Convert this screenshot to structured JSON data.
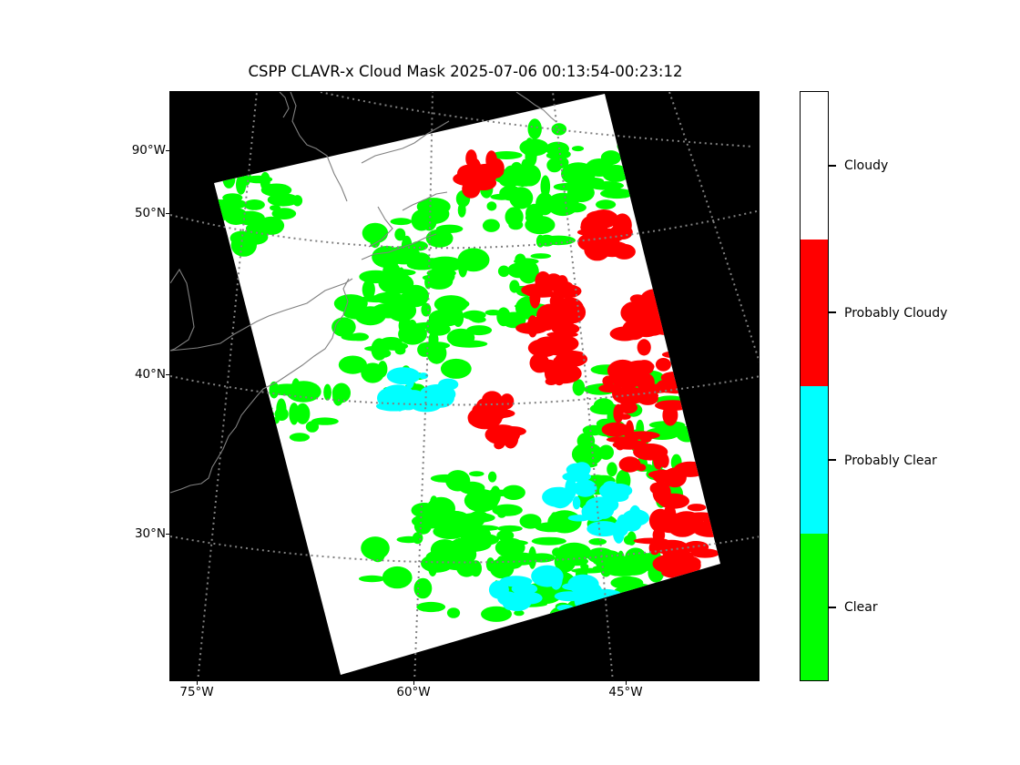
{
  "title": "CSPP CLAVR-x Cloud Mask 2025-07-06 00:13:54-00:23:12",
  "map": {
    "lat_labels": [
      {
        "text": "90°W",
        "lat_row": 0
      },
      {
        "text": "50°N",
        "lat_row": 1
      },
      {
        "text": "40°N",
        "lat_row": 2
      },
      {
        "text": "30°N",
        "lat_row": 3
      }
    ],
    "lon_labels": [
      {
        "text": "75°W"
      },
      {
        "text": "60°W"
      },
      {
        "text": "45°W"
      }
    ],
    "background_color": "#000000",
    "coastline_color": "#808080",
    "gridline_color": "#808080",
    "gridline_style": "dotted"
  },
  "colorbar": {
    "categories": [
      {
        "label": "Cloudy",
        "color": "#ffffff"
      },
      {
        "label": "Probably Cloudy",
        "color": "#ff0000"
      },
      {
        "label": "Probably Clear",
        "color": "#00ffff"
      },
      {
        "label": "Clear",
        "color": "#00ff00"
      }
    ]
  }
}
